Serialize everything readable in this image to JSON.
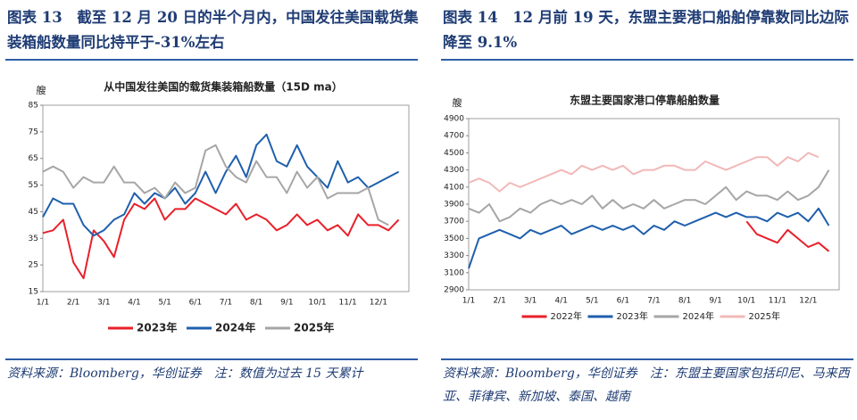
{
  "figures": [
    {
      "caption": "图表 13　截至 12 月 20 日的半个月内，中国发往美国载货集装箱船数量同比持平于-31%左右",
      "source": "资料来源：Bloomberg，华创证券　注：数值为过去 15 天累计"
    },
    {
      "caption": "图表 14　12 月前 19 天，东盟主要港口船舶停靠数同比边际降至 9.1%",
      "source": "资料来源：Bloomberg，华创证券　注：东盟主要国家包括印尼、马来西亚、菲律宾、新加坡、泰国、越南"
    }
  ],
  "chart_data": [
    {
      "type": "line",
      "title": "从中国发往美国的载货集装箱船数量（15D ma）",
      "y_label": "艘",
      "categories": [
        "1/1",
        null,
        null,
        "2/1",
        null,
        null,
        "3/1",
        null,
        null,
        "4/1",
        null,
        null,
        "5/1",
        null,
        null,
        "6/1",
        null,
        null,
        "7/1",
        null,
        null,
        "8/1",
        null,
        null,
        "9/1",
        null,
        null,
        "10/1",
        null,
        null,
        "11/1",
        null,
        null,
        "12/1",
        null,
        null
      ],
      "ylim": [
        15,
        85
      ],
      "yticks": [
        15,
        25,
        35,
        45,
        55,
        65,
        75,
        85
      ],
      "series": [
        {
          "name": "2023年",
          "color": "#e8202a",
          "values": [
            37,
            38,
            42,
            26,
            20,
            38,
            34,
            28,
            42,
            48,
            46,
            50,
            42,
            46,
            46,
            50,
            48,
            46,
            44,
            48,
            42,
            44,
            42,
            38,
            40,
            44,
            40,
            42,
            38,
            40,
            36,
            44,
            40,
            40,
            38,
            42
          ]
        },
        {
          "name": "2024年",
          "color": "#1f5fad",
          "values": [
            43,
            50,
            48,
            48,
            40,
            36,
            38,
            42,
            44,
            52,
            48,
            52,
            50,
            54,
            48,
            52,
            60,
            52,
            60,
            66,
            58,
            70,
            74,
            64,
            62,
            70,
            62,
            58,
            54,
            64,
            56,
            58,
            54,
            56,
            58,
            60
          ]
        },
        {
          "name": "2025年",
          "color": "#a6a6a6",
          "values": [
            60,
            62,
            60,
            54,
            58,
            56,
            56,
            62,
            56,
            56,
            52,
            54,
            50,
            56,
            52,
            54,
            68,
            70,
            62,
            58,
            56,
            64,
            58,
            58,
            52,
            60,
            54,
            58,
            50,
            52,
            52,
            52,
            54,
            42,
            40,
            null
          ]
        }
      ]
    },
    {
      "type": "line",
      "title": "东盟主要国家港口停靠船舶数量",
      "y_label": "艘",
      "categories": [
        "1/1",
        null,
        null,
        "2/1",
        null,
        null,
        "3/1",
        null,
        null,
        "4/1",
        null,
        null,
        "5/1",
        null,
        null,
        "6/1",
        null,
        null,
        "7/1",
        null,
        null,
        "8/1",
        null,
        null,
        "9/1",
        null,
        null,
        "10/1",
        null,
        null,
        "11/1",
        null,
        null,
        "12/1",
        null,
        null
      ],
      "ylim": [
        2900,
        4900
      ],
      "yticks": [
        2900,
        3100,
        3300,
        3500,
        3700,
        3900,
        4100,
        4300,
        4500,
        4700,
        4900
      ],
      "series": [
        {
          "name": "2022年",
          "color": "#e8202a",
          "values": [
            null,
            null,
            null,
            null,
            null,
            null,
            null,
            null,
            null,
            null,
            null,
            null,
            null,
            null,
            null,
            null,
            null,
            null,
            null,
            null,
            null,
            null,
            null,
            null,
            null,
            null,
            null,
            3700,
            3550,
            3500,
            3450,
            3600,
            3500,
            3400,
            3450,
            3350
          ]
        },
        {
          "name": "2023年",
          "color": "#1f5fad",
          "values": [
            3150,
            3500,
            3550,
            3600,
            3550,
            3500,
            3600,
            3550,
            3600,
            3650,
            3550,
            3600,
            3650,
            3600,
            3650,
            3600,
            3650,
            3550,
            3650,
            3600,
            3700,
            3650,
            3700,
            3750,
            3800,
            3750,
            3800,
            3750,
            3750,
            3700,
            3800,
            3750,
            3800,
            3700,
            3850,
            3650
          ]
        },
        {
          "name": "2024年",
          "color": "#a6a6a6",
          "values": [
            3850,
            3800,
            3900,
            3700,
            3750,
            3850,
            3800,
            3900,
            3950,
            3900,
            3950,
            3900,
            4000,
            3850,
            3950,
            3850,
            3900,
            3850,
            3950,
            3850,
            3900,
            3950,
            3950,
            3900,
            4000,
            4100,
            3950,
            4050,
            4000,
            4000,
            3950,
            4050,
            3950,
            4000,
            4100,
            4300
          ]
        },
        {
          "name": "2025年",
          "color": "#f2b8b8",
          "values": [
            4150,
            4200,
            4150,
            4050,
            4150,
            4100,
            4150,
            4200,
            4250,
            4300,
            4250,
            4350,
            4300,
            4350,
            4300,
            4350,
            4250,
            4300,
            4300,
            4350,
            4350,
            4300,
            4300,
            4400,
            4350,
            4300,
            4350,
            4400,
            4450,
            4450,
            4350,
            4450,
            4400,
            4500,
            4450,
            null
          ]
        }
      ]
    }
  ]
}
